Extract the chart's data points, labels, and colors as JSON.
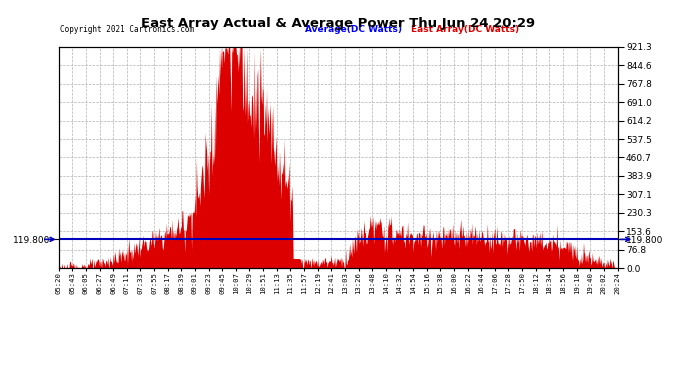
{
  "title": "East Array Actual & Average Power Thu Jun 24 20:29",
  "copyright": "Copyright 2021 Cartronics.com",
  "legend_avg": "Average(DC Watts)",
  "legend_east": "East Array(DC Watts)",
  "avg_value": 119.8,
  "y_max": 921.3,
  "y_min": 0.0,
  "y_ticks_right": [
    0.0,
    76.8,
    153.6,
    230.3,
    307.1,
    383.9,
    460.7,
    537.5,
    614.2,
    691.0,
    767.8,
    844.6,
    921.3
  ],
  "left_label": "119.800",
  "right_label": "119.800",
  "bg_color": "#ffffff",
  "fill_color": "#dd0000",
  "line_color": "#0000bb",
  "grid_color": "#aaaaaa",
  "title_color": "#000000",
  "copyright_color": "#000000",
  "avg_legend_color": "#0000ff",
  "east_legend_color": "#dd0000",
  "x_labels": [
    "05:20",
    "05:43",
    "06:05",
    "06:27",
    "06:49",
    "07:11",
    "07:33",
    "07:55",
    "08:17",
    "08:39",
    "09:01",
    "09:23",
    "09:45",
    "10:07",
    "10:29",
    "10:51",
    "11:13",
    "11:35",
    "11:57",
    "12:19",
    "12:41",
    "13:03",
    "13:26",
    "13:48",
    "14:10",
    "14:32",
    "14:54",
    "15:16",
    "15:38",
    "16:00",
    "16:22",
    "16:44",
    "17:06",
    "17:28",
    "17:50",
    "18:12",
    "18:34",
    "18:56",
    "19:18",
    "19:40",
    "20:02",
    "20:24"
  ],
  "profile_per_label": [
    2,
    5,
    10,
    18,
    35,
    60,
    90,
    110,
    145,
    165,
    250,
    480,
    860,
    920,
    800,
    650,
    480,
    320,
    30,
    25,
    30,
    30,
    120,
    170,
    150,
    140,
    130,
    130,
    125,
    130,
    130,
    130,
    125,
    120,
    115,
    110,
    100,
    90,
    70,
    50,
    25,
    5
  ]
}
